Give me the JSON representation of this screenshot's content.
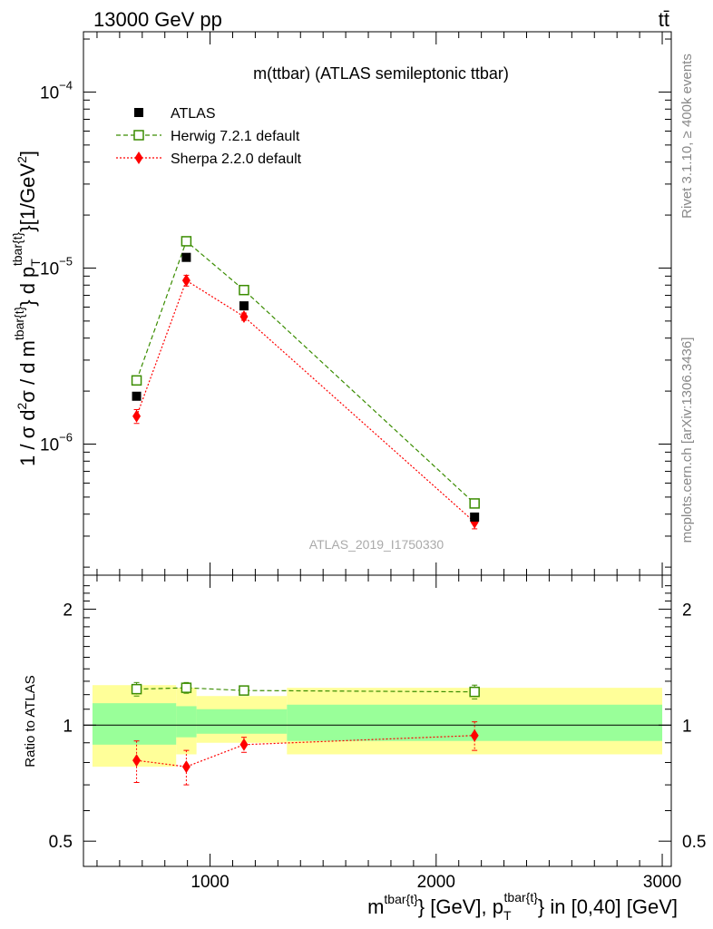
{
  "header": {
    "left": "13000 GeV pp",
    "right": "tt̄"
  },
  "side_labels": {
    "rivet": "Rivet 3.1.10, ≥ 400k events",
    "mcplots": "mcplots.cern.ch [arXiv:1306.3436]"
  },
  "chart_data": [
    {
      "type": "line",
      "title": "m(ttbar) (ATLAS semileptonic ttbar)",
      "watermark": "ATLAS_2019_I1750330",
      "xlabel": "m^{tbar{t}} [GeV], p_T^{tbar{t}} in [0,40] [GeV]",
      "xlabel_parts": {
        "a": "m",
        "a_sup": "tbar{t}",
        "b": "} [GeV], p",
        "b_sub": "T",
        "b_sup": "tbar{t}",
        "c": "} in [0,40] [GeV]"
      },
      "ylabel": "1 / σ d²σ / d m^{tbar{t}} d p_T^{tbar{t}}[1/GeV²]",
      "ylabel_parts": {
        "a": "1 / σ d",
        "a_sup": "2",
        "b": "σ / d m",
        "b_sup": "tbar{t}",
        "c": "} d p",
        "c_sub": "T",
        "c_sup": "tbar{t}",
        "d": "}[1/GeV",
        "d_sup": "2",
        "e": "]"
      },
      "x_scale": "linear",
      "y_scale": "log",
      "xlim": [
        440,
        3040
      ],
      "ylim": [
        1.8e-07,
        0.00022
      ],
      "x_ticks": [
        1000,
        2000,
        3000
      ],
      "y_ticks": [
        {
          "value": 1e-06,
          "base": "10",
          "exp": "−6"
        },
        {
          "value": 1e-05,
          "base": "10",
          "exp": "−5"
        },
        {
          "value": 0.0001,
          "base": "10",
          "exp": "−4"
        }
      ],
      "legend_position": "top-left",
      "series": [
        {
          "name": "ATLAS",
          "marker": "filled-square",
          "color": "#000000",
          "x": [
            675,
            895,
            1150,
            2170
          ],
          "y": [
            1.87e-06,
            1.15e-05,
            6.1e-06,
            3.85e-07
          ]
        },
        {
          "name": "Herwig 7.2.1 default",
          "marker": "open-square",
          "color": "#3a8c00",
          "line": "dashed",
          "x": [
            675,
            895,
            1150,
            2170
          ],
          "y": [
            2.3e-06,
            1.42e-05,
            7.5e-06,
            4.6e-07
          ]
        },
        {
          "name": "Sherpa 2.2.0 default",
          "marker": "diamond",
          "color": "#ff0000",
          "line": "dotted",
          "x": [
            675,
            895,
            1150,
            2170
          ],
          "y": [
            1.44e-06,
            8.5e-06,
            5.3e-06,
            3.6e-07
          ],
          "yerr": [
            1.3e-07,
            6e-07,
            2.5e-07,
            3e-08
          ]
        }
      ]
    },
    {
      "type": "line",
      "ylabel": "Ratio to ATLAS",
      "x_scale": "linear",
      "y_scale": "log",
      "xlim": [
        440,
        3040
      ],
      "ylim": [
        0.43,
        2.45
      ],
      "y_ticks": [
        {
          "value": 0.5,
          "label": "0.5"
        },
        {
          "value": 1,
          "label": "1"
        },
        {
          "value": 2,
          "label": "2"
        }
      ],
      "reference_line": 1,
      "bands": [
        {
          "x0": 480,
          "x1": 850,
          "outer": [
            0.78,
            1.27
          ],
          "inner": [
            0.89,
            1.14
          ]
        },
        {
          "x0": 850,
          "x1": 940,
          "outer": [
            0.84,
            1.25
          ],
          "inner": [
            0.93,
            1.12
          ]
        },
        {
          "x0": 940,
          "x1": 1340,
          "outer": [
            0.9,
            1.19
          ],
          "inner": [
            0.95,
            1.1
          ]
        },
        {
          "x0": 1340,
          "x1": 3000,
          "outer": [
            0.84,
            1.25
          ],
          "inner": [
            0.91,
            1.13
          ]
        }
      ],
      "series": [
        {
          "name": "Herwig 7.2.1 default",
          "marker": "open-square",
          "color": "#3a8c00",
          "line": "dashed",
          "x": [
            675,
            895,
            1150,
            2170
          ],
          "y": [
            1.24,
            1.25,
            1.23,
            1.22
          ],
          "yerr": [
            0.05,
            0.04,
            0.02,
            0.05
          ]
        },
        {
          "name": "Sherpa 2.2.0 default",
          "marker": "diamond",
          "color": "#ff0000",
          "line": "dotted",
          "x": [
            675,
            895,
            1150,
            2170
          ],
          "y": [
            0.81,
            0.78,
            0.89,
            0.94
          ],
          "yerr": [
            0.1,
            0.08,
            0.04,
            0.08
          ]
        }
      ]
    }
  ]
}
